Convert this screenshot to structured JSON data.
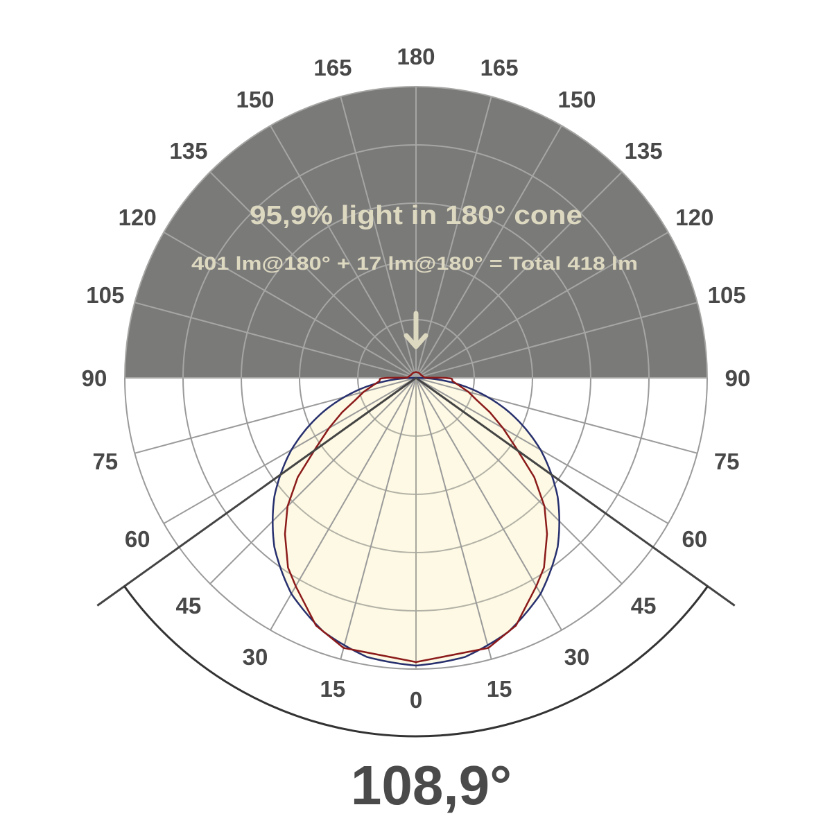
{
  "chart_data": {
    "type": "polar",
    "title": "",
    "angle_labels_left": [
      "0",
      "15",
      "30",
      "45",
      "60",
      "75",
      "90",
      "105",
      "120",
      "135",
      "150",
      "165",
      "180"
    ],
    "angle_labels_right": [
      "15",
      "30",
      "45",
      "60",
      "75",
      "90",
      "105",
      "120",
      "135",
      "150",
      "165"
    ],
    "angle_ticks_deg": [
      0,
      15,
      30,
      45,
      60,
      75,
      90,
      105,
      120,
      135,
      150,
      165,
      180
    ],
    "radial_rings": 5,
    "radial_range": [
      0,
      1
    ],
    "grid": true,
    "annotations": {
      "cone_text": "95,9% light in 180° cone",
      "lumen_text": "401 lm@180° + 17 lm@180° = Total 418 lm",
      "beam_angle_text": "108,9°"
    },
    "beam_angle_deg": 108.9,
    "series": [
      {
        "color": "#8b1a1a",
        "angles_deg": [
          0,
          15,
          22,
          30,
          34,
          40,
          45,
          50,
          55,
          60,
          65,
          70,
          75,
          80,
          85,
          88,
          89,
          90,
          92,
          120,
          150,
          180
        ],
        "values": [
          0.976,
          0.96,
          0.917,
          0.826,
          0.786,
          0.7,
          0.624,
          0.53,
          0.42,
          0.345,
          0.28,
          0.221,
          0.186,
          0.15,
          0.126,
          0.124,
          0.12,
          0.1,
          0.03,
          0.02,
          0.02,
          0.02
        ]
      },
      {
        "color": "#27306e",
        "angles_deg": [
          0,
          10,
          20,
          30,
          40,
          50,
          60,
          70,
          80,
          90
        ],
        "values": [
          0.988,
          0.973,
          0.928,
          0.856,
          0.757,
          0.635,
          0.494,
          0.338,
          0.172,
          0.0
        ]
      }
    ],
    "colors": {
      "upper_background": "#7a7a79",
      "upper_grid": "#a6a6a4",
      "lower_grid": "#9a9a9a",
      "fill": "#fdf9e4",
      "annotation_text": "#ddd8c0",
      "beam_lines": "#444444"
    }
  }
}
